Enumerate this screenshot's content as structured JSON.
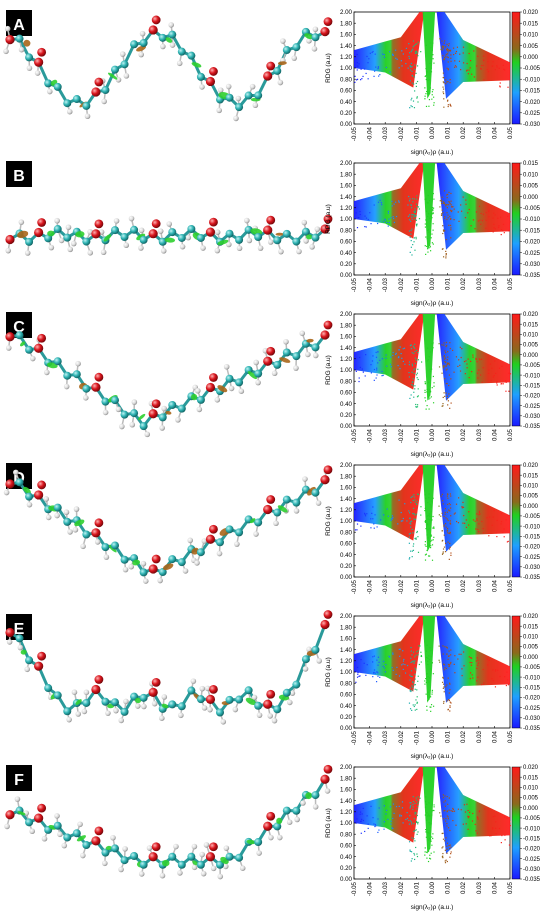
{
  "figure": {
    "panels": [
      {
        "letter": "A",
        "chain": "zigzag",
        "cbar": {
          "max": "0.020",
          "min": "-0.030",
          "labels": [
            "0.020",
            "0.015",
            "0.010",
            "0.005",
            "0.000",
            "-0.005",
            "-0.010",
            "-0.015",
            "-0.020",
            "-0.025",
            "-0.030"
          ]
        }
      },
      {
        "letter": "B",
        "chain": "straight",
        "cbar": {
          "max": "0.015",
          "min": "-0.035",
          "labels": [
            "0.015",
            "0.010",
            "0.005",
            "0.000",
            "-0.005",
            "-0.010",
            "-0.015",
            "-0.020",
            "-0.025",
            "-0.030",
            "-0.035"
          ]
        }
      },
      {
        "letter": "C",
        "chain": "vshape",
        "cbar": {
          "max": "0.020",
          "min": "-0.035",
          "labels": [
            "0.020",
            "0.015",
            "0.010",
            "0.005",
            "0.000",
            "-0.005",
            "-0.010",
            "-0.015",
            "-0.020",
            "-0.025",
            "-0.030",
            "-0.035"
          ]
        }
      },
      {
        "letter": "D",
        "chain": "vshape2",
        "cbar": {
          "max": "0.020",
          "min": "-0.035",
          "labels": [
            "0.020",
            "0.015",
            "0.010",
            "0.005",
            "0.000",
            "-0.005",
            "-0.010",
            "-0.015",
            "-0.020",
            "-0.025",
            "-0.030",
            "-0.035"
          ]
        }
      },
      {
        "letter": "E",
        "chain": "uflat",
        "cbar": {
          "max": "0.020",
          "min": "-0.035",
          "labels": [
            "0.020",
            "0.015",
            "0.010",
            "0.005",
            "0.000",
            "-0.005",
            "-0.010",
            "-0.015",
            "-0.020",
            "-0.025",
            "-0.030",
            "-0.035"
          ]
        }
      },
      {
        "letter": "F",
        "chain": "ushape",
        "cbar": {
          "max": "0.020",
          "min": "-0.035",
          "labels": [
            "0.020",
            "0.015",
            "0.010",
            "0.005",
            "0.000",
            "-0.005",
            "-0.010",
            "-0.015",
            "-0.020",
            "-0.025",
            "-0.030",
            "-0.035"
          ]
        }
      }
    ],
    "colors": {
      "carbon": "#2fb3b3",
      "oxygen": "#d8141c",
      "hydrogen": "#e6e6e6",
      "blue": "#1a2aff",
      "green": "#1ecf1e",
      "red": "#ff2020",
      "brown": "#8a6a1c"
    }
  },
  "chart_data": [
    {
      "type": "scatter",
      "panel": "A",
      "ylabel": "RDG (a.u)",
      "xlabel": "sign(λ₂)ρ (a.u.)",
      "xlim": [
        -0.05,
        0.05
      ],
      "ylim": [
        0,
        2
      ],
      "xticks": [
        "-0.05",
        "-0.04",
        "-0.03",
        "-0.02",
        "-0.01",
        "0.00",
        "0.01",
        "0.02",
        "0.03",
        "0.04",
        "0.05"
      ],
      "yticks": [
        "0.00",
        "0.20",
        "0.40",
        "0.60",
        "0.80",
        "1.00",
        "1.20",
        "1.40",
        "1.60",
        "1.80",
        "2.00"
      ],
      "spikes": [
        -0.012,
        -0.002,
        0.009
      ],
      "colorbar": [
        -0.03,
        0.02
      ]
    },
    {
      "type": "scatter",
      "panel": "B",
      "ylabel": "RDG (a.u)",
      "xlabel": "sign(λ₂)ρ (a.u.)",
      "xlim": [
        -0.05,
        0.05
      ],
      "ylim": [
        0,
        2
      ],
      "xticks": [
        "-0.05",
        "-0.04",
        "-0.03",
        "-0.02",
        "-0.01",
        "0.00",
        "0.01",
        "0.02",
        "0.03",
        "0.04",
        "0.05"
      ],
      "yticks": [
        "0.00",
        "0.20",
        "0.40",
        "0.60",
        "0.80",
        "1.00",
        "1.20",
        "1.40",
        "1.60",
        "1.80",
        "2.00"
      ],
      "spikes": [
        -0.012,
        -0.002,
        0.009
      ],
      "colorbar": [
        -0.035,
        0.015
      ]
    },
    {
      "type": "scatter",
      "panel": "C",
      "ylabel": "RDG (a.u)",
      "xlabel": "sign(λ₂)ρ (a.u.)",
      "xlim": [
        -0.05,
        0.05
      ],
      "ylim": [
        0,
        2
      ],
      "xticks": [
        "-0.05",
        "-0.04",
        "-0.03",
        "-0.02",
        "-0.01",
        "0.00",
        "0.01",
        "0.02",
        "0.03",
        "0.04",
        "0.05"
      ],
      "yticks": [
        "0.00",
        "0.20",
        "0.40",
        "0.60",
        "0.80",
        "1.00",
        "1.20",
        "1.40",
        "1.60",
        "1.80",
        "2.00"
      ],
      "spikes": [
        -0.012,
        -0.002,
        0.009
      ],
      "colorbar": [
        -0.035,
        0.02
      ]
    },
    {
      "type": "scatter",
      "panel": "D",
      "ylabel": "RDG (a.u)",
      "xlabel": "sign(λ₂)ρ (a.u.)",
      "xlim": [
        -0.05,
        0.05
      ],
      "ylim": [
        0,
        2
      ],
      "xticks": [
        "-0.05",
        "-0.04",
        "-0.03",
        "-0.02",
        "-0.01",
        "0.00",
        "0.01",
        "0.02",
        "0.03",
        "0.04",
        "0.05"
      ],
      "yticks": [
        "0.00",
        "0.20",
        "0.40",
        "0.60",
        "0.80",
        "1.00",
        "1.20",
        "1.40",
        "1.60",
        "1.80",
        "2.00"
      ],
      "spikes": [
        -0.012,
        -0.002,
        0.009
      ],
      "colorbar": [
        -0.035,
        0.02
      ]
    },
    {
      "type": "scatter",
      "panel": "E",
      "ylabel": "RDG (a.u)",
      "xlabel": "sign(λ₂)ρ (a.u.)",
      "xlim": [
        -0.05,
        0.05
      ],
      "ylim": [
        0,
        2
      ],
      "xticks": [
        "-0.05",
        "-0.04",
        "-0.03",
        "-0.02",
        "-0.01",
        "0.00",
        "0.01",
        "0.02",
        "0.03",
        "0.04",
        "0.05"
      ],
      "yticks": [
        "0.00",
        "0.20",
        "0.40",
        "0.60",
        "0.80",
        "1.00",
        "1.20",
        "1.40",
        "1.60",
        "1.80",
        "2.00"
      ],
      "spikes": [
        -0.012,
        -0.002,
        0.009
      ],
      "colorbar": [
        -0.035,
        0.02
      ]
    },
    {
      "type": "scatter",
      "panel": "F",
      "ylabel": "RDG (a.u)",
      "xlabel": "sign(λ₂)ρ (a.u.)",
      "xlim": [
        -0.05,
        0.05
      ],
      "ylim": [
        0,
        2
      ],
      "xticks": [
        "-0.05",
        "-0.04",
        "-0.03",
        "-0.02",
        "-0.01",
        "0.00",
        "0.01",
        "0.02",
        "0.03",
        "0.04",
        "0.05"
      ],
      "yticks": [
        "0.00",
        "0.20",
        "0.40",
        "0.60",
        "0.80",
        "1.00",
        "1.20",
        "1.40",
        "1.60",
        "1.80",
        "2.00"
      ],
      "spikes": [
        -0.012,
        -0.002,
        0.009
      ],
      "colorbar": [
        -0.035,
        0.02
      ]
    }
  ]
}
